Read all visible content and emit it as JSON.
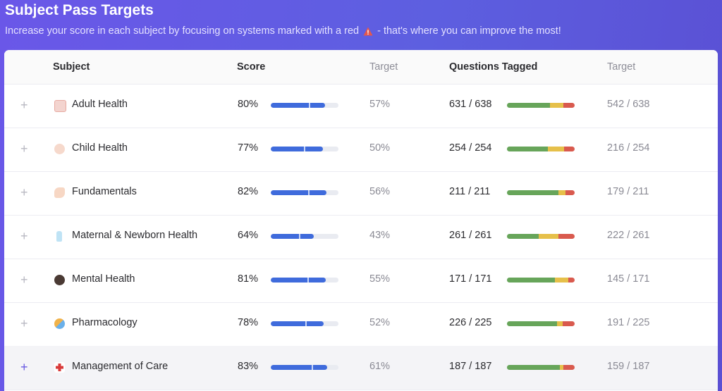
{
  "page": {
    "title": "Subject Pass Targets",
    "subtitle_before": "Increase your score in each subject by focusing on systems marked with a red",
    "subtitle_after": "- that's where you can improve the most!"
  },
  "table": {
    "headers": {
      "subject": "Subject",
      "score": "Score",
      "target": "Target",
      "questions": "Questions Tagged",
      "target2": "Target"
    },
    "rows": [
      {
        "expand": "+",
        "icon": "adult-health-icon",
        "subject": "Adult Health",
        "score": "80%",
        "score_fraction": 0.8,
        "target_fraction": 0.57,
        "target": "57%",
        "questions": "631 / 638",
        "dist": [
          0.64,
          0.19,
          0.17
        ],
        "target_q": "542 / 638"
      },
      {
        "expand": "+",
        "icon": "child-health-icon",
        "subject": "Child Health",
        "score": "77%",
        "score_fraction": 0.77,
        "target_fraction": 0.5,
        "target": "50%",
        "questions": "254 / 254",
        "dist": [
          0.6,
          0.24,
          0.16
        ],
        "target_q": "216 / 254"
      },
      {
        "expand": "+",
        "icon": "fundamentals-icon",
        "subject": "Fundamentals",
        "score": "82%",
        "score_fraction": 0.82,
        "target_fraction": 0.56,
        "target": "56%",
        "questions": "211 / 211",
        "dist": [
          0.76,
          0.1,
          0.14
        ],
        "target_q": "179 / 211"
      },
      {
        "expand": "+",
        "icon": "maternal-newborn-icon",
        "subject": "Maternal & Newborn Health",
        "score": "64%",
        "score_fraction": 0.64,
        "target_fraction": 0.43,
        "target": "43%",
        "questions": "261 / 261",
        "dist": [
          0.47,
          0.29,
          0.24
        ],
        "target_q": "222 / 261"
      },
      {
        "expand": "+",
        "icon": "mental-health-icon",
        "subject": "Mental Health",
        "score": "81%",
        "score_fraction": 0.81,
        "target_fraction": 0.55,
        "target": "55%",
        "questions": "171 / 171",
        "dist": [
          0.71,
          0.2,
          0.09
        ],
        "target_q": "145 / 171"
      },
      {
        "expand": "+",
        "icon": "pharmacology-icon",
        "subject": "Pharmacology",
        "score": "78%",
        "score_fraction": 0.78,
        "target_fraction": 0.52,
        "target": "52%",
        "questions": "226 / 225",
        "dist": [
          0.74,
          0.08,
          0.18
        ],
        "target_q": "191 / 225"
      },
      {
        "expand": "+",
        "icon": "management-of-care-icon",
        "subject": "Management of Care",
        "score": "83%",
        "score_fraction": 0.83,
        "target_fraction": 0.61,
        "target": "61%",
        "questions": "187 / 187",
        "dist": [
          0.78,
          0.05,
          0.17
        ],
        "target_q": "159 / 187"
      }
    ]
  },
  "colors": {
    "background": "#5d5fe0",
    "score_bar": "#3f6bdc",
    "green": "#67a55a",
    "yellow": "#e6c04a",
    "red": "#d95a4e",
    "expand_active": "#6a5be2"
  }
}
